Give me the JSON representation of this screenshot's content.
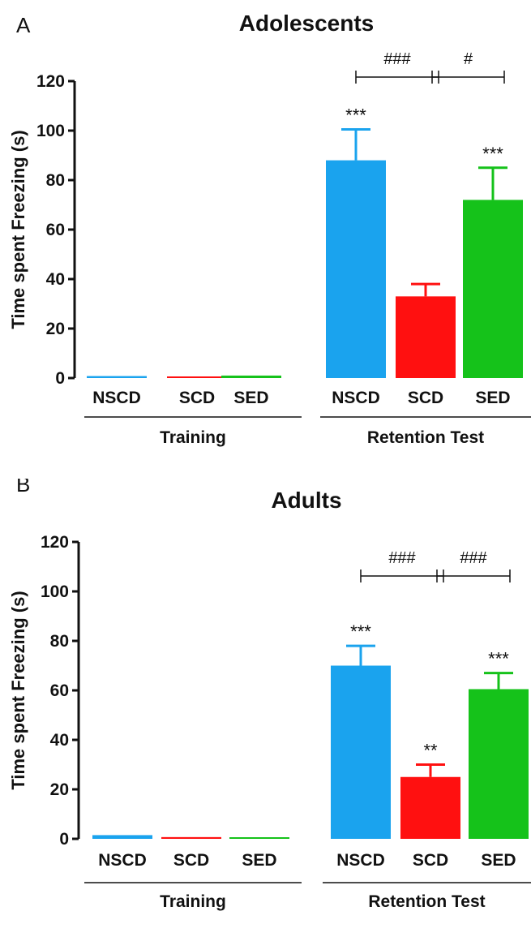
{
  "colors": {
    "NSCD": "#1aa3ee",
    "SCD": "#ff1010",
    "SED": "#15c21a"
  },
  "chart_data": [
    {
      "panel_label": "A",
      "type": "bar",
      "title": "Adolescents",
      "ylabel": "Time spent Freezing (s)",
      "ylim": [
        0,
        120
      ],
      "yticks": [
        "0",
        "20",
        "40",
        "60",
        "80",
        "100",
        "120"
      ],
      "groups": [
        "Training",
        "Retention Test"
      ],
      "categories": [
        "NSCD",
        "SCD",
        "SED"
      ],
      "series": [
        {
          "group": "Training",
          "values": [
            0.8,
            0.5,
            1.0
          ],
          "errors": [
            0.4,
            0.2,
            0.3
          ],
          "annotations": [
            "",
            "",
            ""
          ]
        },
        {
          "group": "Retention Test",
          "values": [
            88,
            33,
            72
          ],
          "errors": [
            12.5,
            5,
            13
          ],
          "annotations": [
            "***",
            "",
            "***"
          ]
        }
      ],
      "comparisons": [
        {
          "from": "NSCD",
          "to": "SCD",
          "label": "###"
        },
        {
          "from": "SCD",
          "to": "SED",
          "label": "#"
        }
      ]
    },
    {
      "panel_label": "B",
      "type": "bar",
      "title": "Adults",
      "ylabel": "Time spent Freezing (s)",
      "ylim": [
        0,
        120
      ],
      "yticks": [
        "0",
        "20",
        "40",
        "60",
        "80",
        "100",
        "120"
      ],
      "groups": [
        "Training",
        "Retention Test"
      ],
      "categories": [
        "NSCD",
        "SCD",
        "SED"
      ],
      "series": [
        {
          "group": "Training",
          "values": [
            1.5,
            0.7,
            0.3
          ],
          "errors": [
            0.6,
            0.3,
            0.2
          ],
          "annotations": [
            "",
            "",
            ""
          ]
        },
        {
          "group": "Retention Test",
          "values": [
            70,
            25,
            60.5
          ],
          "errors": [
            8,
            5,
            6.5
          ],
          "annotations": [
            "***",
            "**",
            "***"
          ]
        }
      ],
      "comparisons": [
        {
          "from": "NSCD",
          "to": "SCD",
          "label": "###"
        },
        {
          "from": "SCD",
          "to": "SED",
          "label": "###"
        }
      ]
    }
  ]
}
